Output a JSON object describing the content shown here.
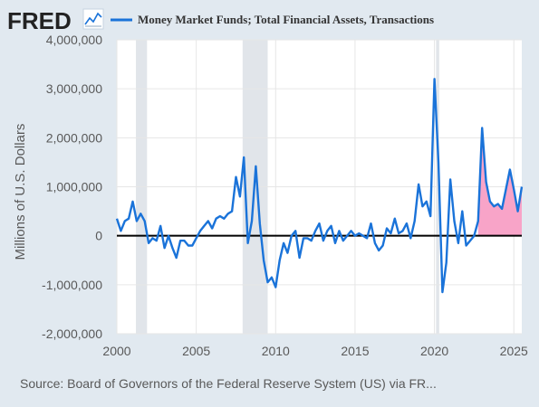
{
  "brand": {
    "name": "FRED"
  },
  "source_text": "Source: Board of Governors of the Federal Reserve System (US) via FR...",
  "colors": {
    "background": "#e1e9f0",
    "plot_bg": "#ffffff",
    "series": "#1a73d9",
    "recession": "#e1e5ea",
    "positive_fill": "#f8a4c8",
    "zero_line": "#000000",
    "grid": "#e6e6e6",
    "text": "#595959",
    "brand_text": "#222222",
    "title_text": "#333333"
  },
  "chart_data": {
    "type": "line",
    "title": "Money Market Funds; Total Financial Assets, Transactions",
    "ylabel": "Millions of U.S. Dollars",
    "xlabel": "",
    "xlim": [
      2000.0,
      2025.5
    ],
    "ylim": [
      -2000000,
      4000000
    ],
    "x_ticks": [
      2000,
      2005,
      2010,
      2015,
      2020,
      2025
    ],
    "y_ticks": [
      -2000000,
      -1000000,
      0,
      1000000,
      2000000,
      3000000,
      4000000
    ],
    "y_tick_labels": [
      "-2,000,000",
      "-1,000,000",
      "0",
      "1,000,000",
      "2,000,000",
      "3,000,000",
      "4,000,000"
    ],
    "grid": true,
    "legend": "top",
    "recessions": [
      [
        2001.2,
        2001.9
      ],
      [
        2007.92,
        2009.5
      ],
      [
        2020.1,
        2020.3
      ]
    ],
    "highlight_positive_from": 2022.75,
    "series": [
      {
        "name": "Money Market Funds; Total Financial Assets, Transactions",
        "x": [
          2000.0,
          2000.25,
          2000.5,
          2000.75,
          2001.0,
          2001.25,
          2001.5,
          2001.75,
          2002.0,
          2002.25,
          2002.5,
          2002.75,
          2003.0,
          2003.25,
          2003.5,
          2003.75,
          2004.0,
          2004.25,
          2004.5,
          2004.75,
          2005.0,
          2005.25,
          2005.5,
          2005.75,
          2006.0,
          2006.25,
          2006.5,
          2006.75,
          2007.0,
          2007.25,
          2007.5,
          2007.75,
          2008.0,
          2008.25,
          2008.5,
          2008.75,
          2009.0,
          2009.25,
          2009.5,
          2009.75,
          2010.0,
          2010.25,
          2010.5,
          2010.75,
          2011.0,
          2011.25,
          2011.5,
          2011.75,
          2012.0,
          2012.25,
          2012.5,
          2012.75,
          2013.0,
          2013.25,
          2013.5,
          2013.75,
          2014.0,
          2014.25,
          2014.5,
          2014.75,
          2015.0,
          2015.25,
          2015.5,
          2015.75,
          2016.0,
          2016.25,
          2016.5,
          2016.75,
          2017.0,
          2017.25,
          2017.5,
          2017.75,
          2018.0,
          2018.25,
          2018.5,
          2018.75,
          2019.0,
          2019.25,
          2019.5,
          2019.75,
          2020.0,
          2020.25,
          2020.5,
          2020.75,
          2021.0,
          2021.25,
          2021.5,
          2021.75,
          2022.0,
          2022.25,
          2022.5,
          2022.75,
          2023.0,
          2023.25,
          2023.5,
          2023.75,
          2024.0,
          2024.25,
          2024.5,
          2024.75,
          2025.0,
          2025.25,
          2025.5
        ],
        "values": [
          350000,
          100000,
          300000,
          350000,
          700000,
          300000,
          450000,
          300000,
          -150000,
          -50000,
          -100000,
          200000,
          -250000,
          0,
          -250000,
          -450000,
          -100000,
          -100000,
          -200000,
          -200000,
          -50000,
          100000,
          200000,
          300000,
          150000,
          350000,
          400000,
          350000,
          450000,
          500000,
          1200000,
          800000,
          1600000,
          -150000,
          300000,
          1420000,
          250000,
          -500000,
          -950000,
          -850000,
          -1050000,
          -500000,
          -150000,
          -350000,
          0,
          100000,
          -450000,
          -50000,
          -50000,
          -100000,
          100000,
          250000,
          -100000,
          100000,
          200000,
          -150000,
          100000,
          -100000,
          0,
          100000,
          0,
          50000,
          0,
          -50000,
          250000,
          -150000,
          -300000,
          -200000,
          150000,
          50000,
          350000,
          50000,
          100000,
          250000,
          -50000,
          300000,
          1050000,
          600000,
          700000,
          400000,
          3200000,
          1500000,
          -1150000,
          -550000,
          1150000,
          300000,
          -150000,
          500000,
          -200000,
          -100000,
          0,
          300000,
          2200000,
          1100000,
          700000,
          600000,
          650000,
          550000,
          950000,
          1350000,
          950000,
          500000,
          1000000
        ]
      }
    ]
  }
}
